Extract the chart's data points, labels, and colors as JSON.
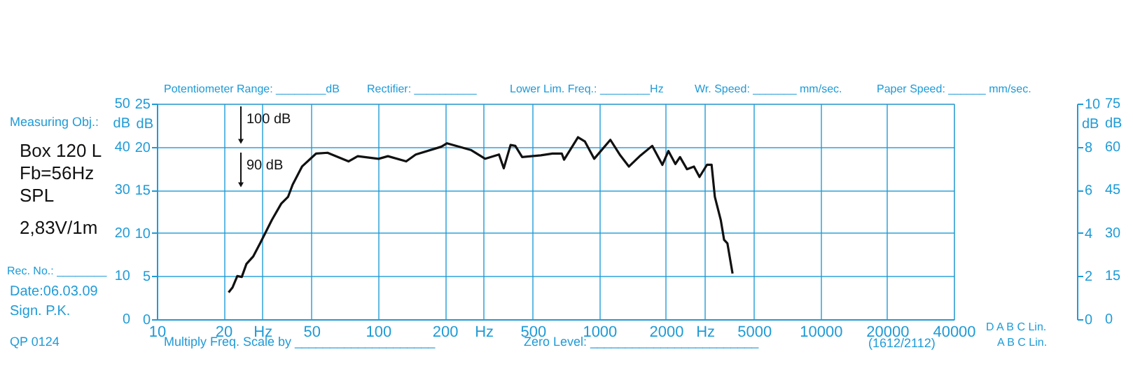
{
  "chart_data": {
    "type": "line",
    "x": [
      21.1,
      22.0,
      23.1,
      24.2,
      25.4,
      27.3,
      29.3,
      33.1,
      36.5,
      39.2,
      41.1,
      45.3,
      52.4,
      59.1,
      73.5,
      80.9,
      100.5,
      110.8,
      134,
      148,
      193,
      205,
      264,
      305,
      352,
      370,
      397,
      417,
      448,
      544,
      614,
      677,
      693,
      801,
      861,
      948,
      1122,
      1236,
      1361,
      1537,
      1734,
      1928,
      2053,
      2207,
      2316,
      2490,
      2678,
      2837,
      3065,
      3218,
      3328,
      3540,
      3665,
      3793,
      4002
    ],
    "series": [
      {
        "color": "#111111",
        "values": [
          3.1,
          3.7,
          5.0,
          4.9,
          6.4,
          7.3,
          8.8,
          11.5,
          13.4,
          14.2,
          15.6,
          17.7,
          19.2,
          19.3,
          18.3,
          18.9,
          18.6,
          18.9,
          18.3,
          19.1,
          20.0,
          20.4,
          19.6,
          18.6,
          19.1,
          17.5,
          20.2,
          20.1,
          18.8,
          19.0,
          19.2,
          19.2,
          18.5,
          21.1,
          20.6,
          18.6,
          20.8,
          19.1,
          17.7,
          19.0,
          20.1,
          17.9,
          19.5,
          18.0,
          18.8,
          17.4,
          17.7,
          16.5,
          17.9,
          17.9,
          14.2,
          11.5,
          9.2,
          8.8,
          5.3
        ]
      }
    ],
    "log": "x",
    "grid": true,
    "line_style": "solid",
    "xlim": [
      10,
      40000
    ],
    "xticks": [
      10,
      20,
      {
        "value": 30,
        "label": "Hz"
      },
      50,
      100,
      200,
      {
        "value": 300,
        "label": "Hz"
      },
      500,
      1000,
      2000,
      {
        "value": 3000,
        "label": "Hz"
      },
      5000,
      10000,
      20000,
      40000
    ],
    "ylim": [
      0,
      25
    ],
    "yticks": [
      0,
      5,
      10,
      15,
      20,
      25
    ],
    "ylabel": "dB",
    "y2lim": [
      0,
      10
    ],
    "y2ticks": [
      0,
      2,
      4,
      6,
      8,
      10
    ],
    "y2label": "dB",
    "annotations": [
      "100 dB",
      "90 dB",
      "Potentiometer Range: ________dB",
      "Rectifier: __________",
      "Lower Lim. Freq.: ________Hz",
      "Wr.  Speed: _______ mm/sec.",
      "Paper Speed: ______ mm/sec.",
      "Measuring Obj.:",
      "Box 120 L",
      "Fb=56Hz",
      "SPL",
      "2,83V/1m",
      "Rec.  No.: ________",
      "Date:06.03.09",
      "Sign. P.K.",
      "QP  0124",
      "Multiply Freq. Scale by ____________________",
      "Zero Level: ________________________",
      "(1612/2112)",
      "D   A   B   C Lin.",
      "A   B   C Lin.",
      "50",
      "40",
      "30",
      "20",
      "10",
      "0",
      "dB",
      "75",
      "60",
      "45",
      "30",
      "15",
      "0",
      "dB"
    ]
  }
}
